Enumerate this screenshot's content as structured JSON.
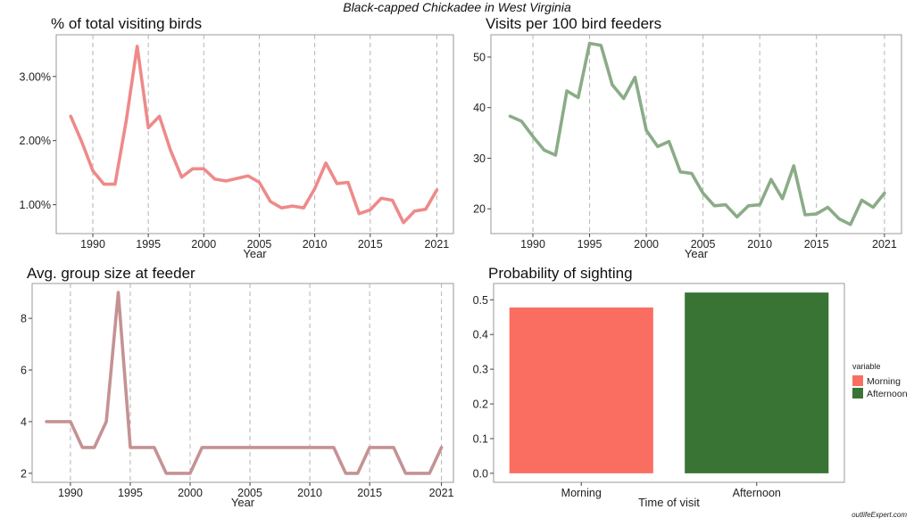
{
  "suptitle": "Black-capped Chickadee in West Virginia",
  "watermark": "outlifeExpert.com",
  "chart_data": [
    {
      "id": "pct",
      "type": "line",
      "title": "% of total visiting birds",
      "xlabel": "Year",
      "ylabel": "",
      "color": "#ee8a8a",
      "x": [
        1988,
        1989,
        1990,
        1991,
        1992,
        1993,
        1994,
        1995,
        1996,
        1997,
        1998,
        1999,
        2000,
        2001,
        2002,
        2003,
        2004,
        2005,
        2006,
        2007,
        2008,
        2009,
        2010,
        2011,
        2012,
        2013,
        2014,
        2015,
        2016,
        2017,
        2018,
        2019,
        2020,
        2021
      ],
      "values": [
        2.38,
        1.98,
        1.53,
        1.32,
        1.32,
        2.3,
        3.47,
        2.2,
        2.38,
        1.85,
        1.43,
        1.56,
        1.56,
        1.4,
        1.37,
        1.41,
        1.45,
        1.35,
        1.05,
        0.95,
        0.98,
        0.95,
        1.25,
        1.65,
        1.33,
        1.35,
        0.86,
        0.92,
        1.1,
        1.07,
        0.72,
        0.9,
        0.93,
        1.23
      ],
      "xticks": [
        1990,
        1995,
        2000,
        2005,
        2010,
        2015,
        2021
      ],
      "yticks": [
        1.0,
        2.0,
        3.0
      ],
      "ytick_labels": [
        "1.00%",
        "2.00%",
        "3.00%"
      ],
      "xlim": [
        1986.7,
        2022.5
      ],
      "ylim": [
        0.55,
        3.65
      ]
    },
    {
      "id": "visits",
      "type": "line",
      "title": "Visits per 100 bird feeders",
      "xlabel": "Year",
      "ylabel": "",
      "color": "#8aac87",
      "x": [
        1988,
        1989,
        1990,
        1991,
        1992,
        1993,
        1994,
        1995,
        1996,
        1997,
        1998,
        1999,
        2000,
        2001,
        2002,
        2003,
        2004,
        2005,
        2006,
        2007,
        2008,
        2009,
        2010,
        2011,
        2012,
        2013,
        2014,
        2015,
        2016,
        2017,
        2018,
        2019,
        2020,
        2021
      ],
      "values": [
        38.3,
        37.3,
        34.3,
        31.6,
        30.6,
        43.3,
        42.0,
        52.7,
        52.3,
        44.5,
        41.8,
        46.0,
        35.5,
        32.3,
        33.3,
        27.3,
        27.0,
        23.1,
        20.6,
        20.8,
        18.4,
        20.6,
        20.8,
        25.8,
        22.0,
        28.5,
        18.8,
        19.0,
        20.3,
        18.0,
        16.9,
        21.7,
        20.3,
        23.1
      ],
      "xticks": [
        1990,
        1995,
        2000,
        2005,
        2010,
        2015,
        2021
      ],
      "yticks": [
        20,
        30,
        40,
        50
      ],
      "ytick_labels": [
        "20",
        "30",
        "40",
        "50"
      ],
      "xlim": [
        1986.3,
        2022.5
      ],
      "ylim": [
        15.1,
        54.4
      ]
    },
    {
      "id": "group",
      "type": "line",
      "title": "Avg. group size at feeder",
      "xlabel": "Year",
      "ylabel": "",
      "color": "#c59294",
      "x": [
        1988,
        1989,
        1990,
        1991,
        1992,
        1993,
        1994,
        1995,
        1996,
        1997,
        1998,
        1999,
        2000,
        2001,
        2002,
        2003,
        2004,
        2005,
        2006,
        2007,
        2008,
        2009,
        2010,
        2011,
        2012,
        2013,
        2014,
        2015,
        2016,
        2017,
        2018,
        2019,
        2020,
        2021
      ],
      "values": [
        4,
        4,
        4,
        3,
        3,
        4,
        9,
        3,
        3,
        3,
        2,
        2,
        2,
        3,
        3,
        3,
        3,
        3,
        3,
        3,
        3,
        3,
        3,
        3,
        3,
        2,
        2,
        3,
        3,
        3,
        2,
        2,
        2,
        3
      ],
      "xticks": [
        1990,
        1995,
        2000,
        2005,
        2010,
        2015,
        2021
      ],
      "yticks": [
        2,
        4,
        6,
        8
      ],
      "ytick_labels": [
        "2",
        "4",
        "6",
        "8"
      ],
      "xlim": [
        1986.8,
        2022.0
      ],
      "ylim": [
        1.65,
        9.35
      ]
    },
    {
      "id": "prob",
      "type": "bar",
      "title": "Probability of sighting",
      "xlabel": "Time of visit",
      "ylabel": "",
      "categories": [
        "Morning",
        "Afternoon"
      ],
      "values": [
        0.478,
        0.521
      ],
      "colors": [
        "#fa6e61",
        "#3a7434"
      ],
      "yticks": [
        0.0,
        0.1,
        0.2,
        0.3,
        0.4,
        0.5
      ],
      "ytick_labels": [
        "0.0",
        "0.1",
        "0.2",
        "0.3",
        "0.4",
        "0.5"
      ],
      "ylim": [
        -0.026,
        0.547
      ],
      "legend": {
        "title": "variable",
        "position": "right",
        "entries": [
          "Morning",
          "Afternoon"
        ]
      }
    }
  ]
}
